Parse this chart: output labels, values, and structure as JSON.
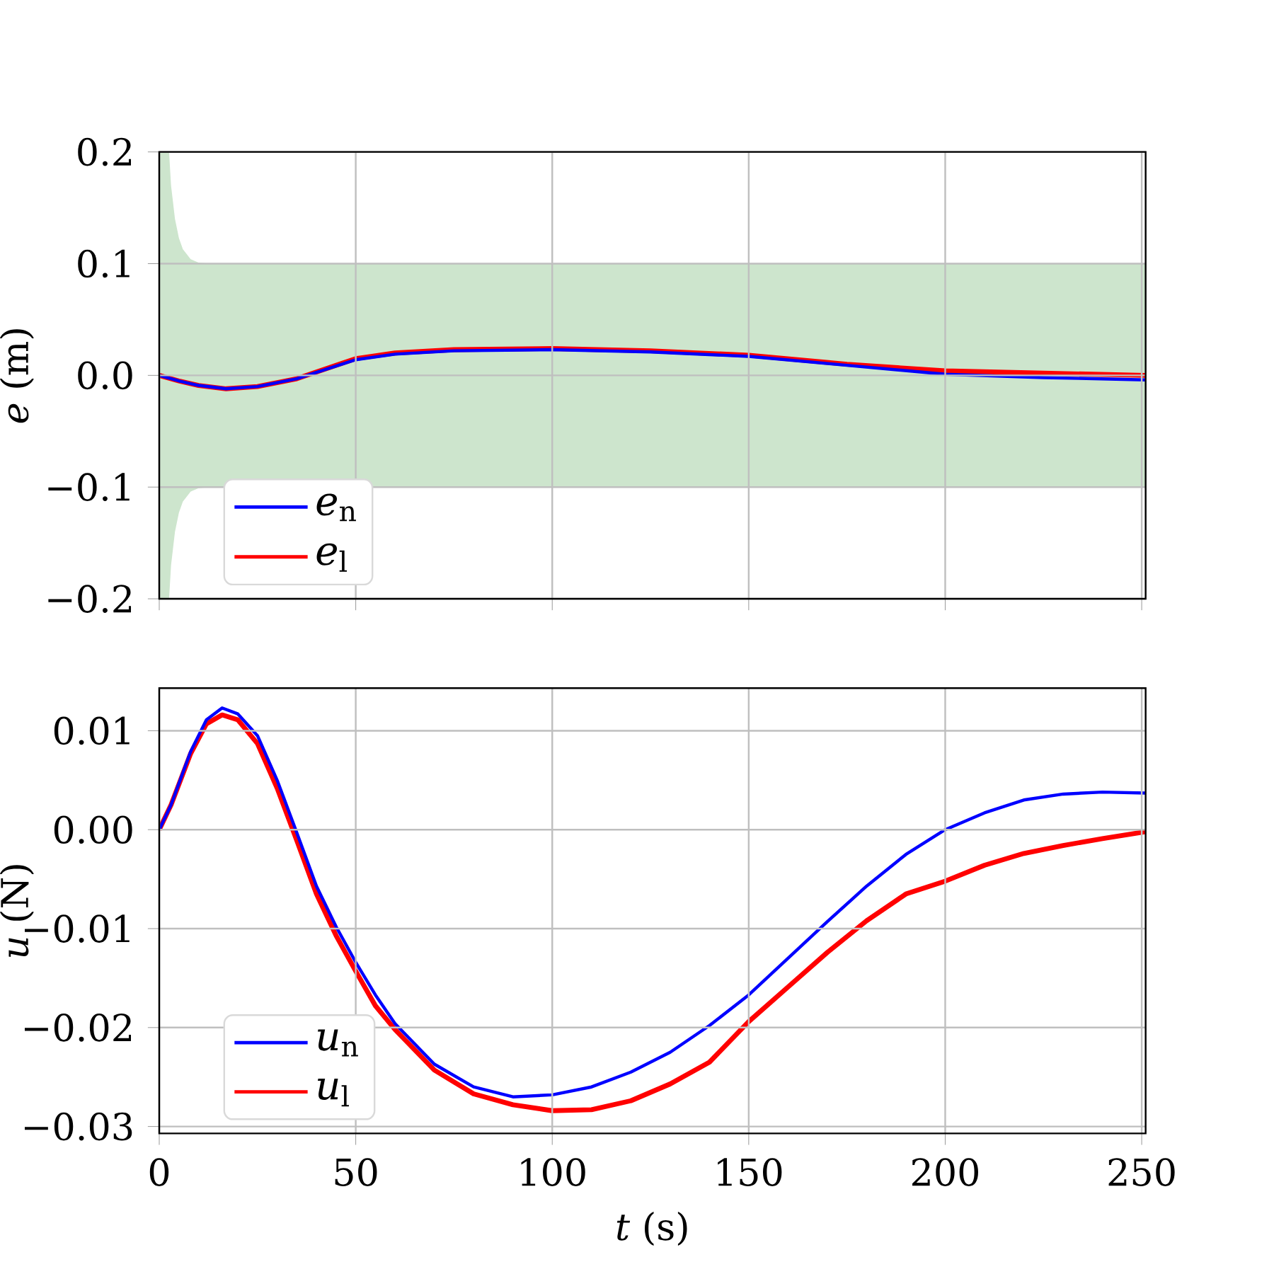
{
  "chart_data": [
    {
      "type": "line",
      "ylabel": "*e* (m)",
      "grid": true,
      "legend": "bottom left",
      "tick_labels": "y",
      "xlim": [
        0,
        251
      ],
      "ylim": [
        -0.2,
        0.2
      ],
      "xticks": [
        0,
        50,
        100,
        150,
        200,
        250
      ],
      "yticks": [
        {
          "value": -0.2,
          "label": "−0.2"
        },
        {
          "value": -0.1,
          "label": "−0.1"
        },
        {
          "value": 0,
          "label": "0.0"
        },
        0.1,
        0.2
      ],
      "x": [
        0,
        5,
        10,
        17,
        25,
        35,
        50,
        60,
        75,
        100,
        125,
        150,
        175,
        200,
        225,
        251
      ],
      "series": [
        {
          "type": "area",
          "color": "#cde5cd",
          "x": [
            0,
            2.5,
            3,
            4,
            5,
            6,
            8,
            10,
            13,
            251
          ],
          "values": [
            0.2,
            0.2,
            0.17,
            0.14,
            0.123,
            0.113,
            0.104,
            0.101,
            0.1,
            0.1
          ]
        },
        {
          "type": "area",
          "color": "#cde5cd",
          "x": [
            0,
            2.5,
            3,
            4,
            5,
            6,
            8,
            10,
            13,
            251
          ],
          "values": [
            -0.2,
            -0.2,
            -0.17,
            -0.14,
            -0.123,
            -0.113,
            -0.104,
            -0.101,
            -0.1,
            -0.1
          ]
        },
        {
          "name": "*e*$_{n}$",
          "color": "#0000ff",
          "values": [
            0,
            -0.005,
            -0.009,
            -0.012,
            -0.01,
            -0.003,
            0.014,
            0.019,
            0.022,
            0.023,
            0.021,
            0.017,
            0.009,
            0.001,
            -0.002,
            -0.004
          ]
        },
        {
          "name": "*e*$_{l}$",
          "color": "#ff0000",
          "values": [
            0,
            -0.005,
            -0.009,
            -0.012,
            -0.01,
            -0.003,
            0.015,
            0.02,
            0.023,
            0.024,
            0.022,
            0.018,
            0.01,
            0.004,
            0.002,
            0.0
          ]
        }
      ]
    },
    {
      "type": "line",
      "xlabel": "*t*  (s)",
      "ylabel": "*u* (N)",
      "grid": true,
      "legend": "bottom left",
      "xlim": [
        0,
        251
      ],
      "ylim": [
        -0.0307,
        0.0143
      ],
      "xticks": [
        0,
        50,
        100,
        150,
        200,
        250
      ],
      "yticks": [
        {
          "value": -0.03,
          "label": "−0.03"
        },
        {
          "value": -0.02,
          "label": "−0.02"
        },
        {
          "value": -0.01,
          "label": "−0.01"
        },
        {
          "value": 0.0,
          "label": "0.00"
        },
        0.01
      ],
      "x": [
        0,
        3,
        8,
        12,
        16,
        20,
        25,
        30,
        35,
        40,
        45,
        50,
        55,
        60,
        70,
        80,
        90,
        100,
        110,
        120,
        130,
        140,
        150,
        160,
        170,
        180,
        190,
        200,
        210,
        220,
        230,
        240,
        251
      ],
      "series": [
        {
          "name": "*u*$_{n}$",
          "color": "#0000ff",
          "values": [
            0,
            0.0025,
            0.0079,
            0.0111,
            0.0123,
            0.0117,
            0.0095,
            0.005,
            -0.0003,
            -0.0057,
            -0.0098,
            -0.0134,
            -0.0167,
            -0.0196,
            -0.0237,
            -0.026,
            -0.027,
            -0.0268,
            -0.026,
            -0.0245,
            -0.0225,
            -0.0198,
            -0.0167,
            -0.013,
            -0.0093,
            -0.0057,
            -0.0025,
            0.0,
            0.0017,
            0.003,
            0.0036,
            0.0038,
            0.0037
          ]
        },
        {
          "name": "*u*$_{l}$",
          "color": "#ff0000",
          "values": [
            0,
            0.0025,
            0.0077,
            0.0107,
            0.0116,
            0.0111,
            0.0087,
            0.0042,
            -0.0011,
            -0.0065,
            -0.0107,
            -0.0143,
            -0.0178,
            -0.0202,
            -0.0243,
            -0.0267,
            -0.0278,
            -0.0284,
            -0.0283,
            -0.0274,
            -0.0257,
            -0.0235,
            -0.0194,
            -0.0159,
            -0.0124,
            -0.0092,
            -0.0065,
            -0.0052,
            -0.0036,
            -0.0024,
            -0.0016,
            -0.0009,
            -0.0002
          ]
        }
      ]
    }
  ]
}
